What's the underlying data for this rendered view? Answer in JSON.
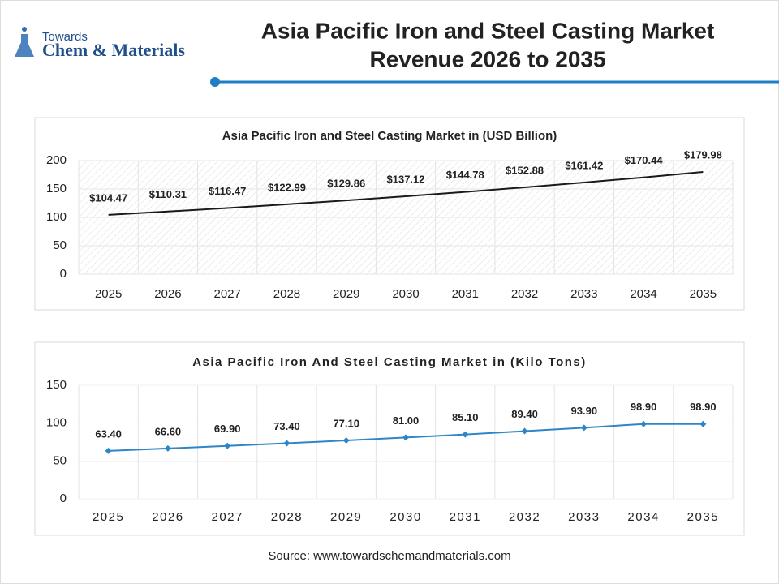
{
  "header": {
    "logo_top": "Towards",
    "logo_main": "Chem & Materials",
    "title": [
      "Asia Pacific Iron and Steel Casting Market",
      "Revenue 2026 to 2035"
    ]
  },
  "source": "Source: www.towardschemandmaterials.com",
  "chart_data": [
    {
      "type": "line",
      "title": "Asia Pacific Iron and Steel Casting Market in (USD Billion)",
      "categories": [
        "2025",
        "2026",
        "2027",
        "2028",
        "2029",
        "2030",
        "2031",
        "2032",
        "2033",
        "2034",
        "2035"
      ],
      "values": [
        104.47,
        110.31,
        116.47,
        122.99,
        129.86,
        137.12,
        144.78,
        152.88,
        161.42,
        170.44,
        179.98
      ],
      "value_labels": [
        "$104.47",
        "$110.31",
        "$116.47",
        "$122.99",
        "$129.86",
        "$137.12",
        "$144.78",
        "$152.88",
        "$161.42",
        "$170.44",
        "$179.98"
      ],
      "color": "#1a1a1a",
      "markers": false,
      "hatched": true,
      "ylim": [
        0,
        200
      ],
      "yticks": [
        0,
        50,
        100,
        150,
        200
      ],
      "grid": true
    },
    {
      "type": "line",
      "title": "Asia Pacific Iron And Steel Casting Market in (Kilo Tons)",
      "categories": [
        "2025",
        "2026",
        "2027",
        "2028",
        "2029",
        "2030",
        "2031",
        "2032",
        "2033",
        "2034",
        "2035"
      ],
      "values": [
        63.4,
        66.6,
        69.9,
        73.4,
        77.1,
        81.0,
        85.1,
        89.4,
        93.9,
        98.9,
        98.9
      ],
      "value_labels": [
        "63.40",
        "66.60",
        "69.90",
        "73.40",
        "77.10",
        "81.00",
        "85.10",
        "89.40",
        "93.90",
        "98.90",
        "98.90"
      ],
      "color": "#2e86c8",
      "markers": true,
      "hatched": false,
      "ylim": [
        0,
        150
      ],
      "yticks": [
        0,
        50,
        100,
        150
      ],
      "grid": true
    }
  ]
}
